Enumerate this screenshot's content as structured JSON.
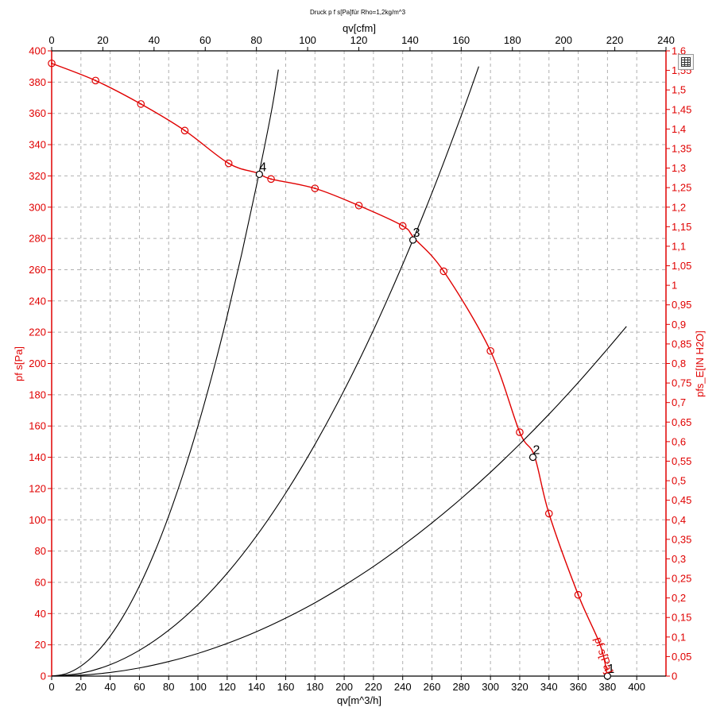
{
  "chart_data": {
    "type": "line",
    "title": "Druck p f s[Pa]für Rho=1,2kg/m^3",
    "xlabel": "qv[m^3/h]",
    "x2label": "qv[cfm]",
    "ylabel": "pf s[Pa]",
    "y2label": "pfs_E[IN H2O]",
    "xlim": [
      0,
      420
    ],
    "ylim": [
      0,
      400
    ],
    "x2lim": [
      0,
      240
    ],
    "y2lim": [
      0,
      1.6
    ],
    "grid": true,
    "x_ticks": [
      0,
      20,
      40,
      60,
      80,
      100,
      120,
      140,
      160,
      180,
      200,
      220,
      240,
      260,
      280,
      300,
      320,
      340,
      360,
      380,
      400
    ],
    "x_tick_labels": [
      "0",
      "20",
      "40",
      "60",
      "80",
      "100",
      "120",
      "140",
      "160",
      "180",
      "200",
      "220",
      "240",
      "260",
      "280",
      "300",
      "320",
      "340",
      "360",
      "380",
      "400"
    ],
    "y_ticks": [
      0,
      20,
      40,
      60,
      80,
      100,
      120,
      140,
      160,
      180,
      200,
      220,
      240,
      260,
      280,
      300,
      320,
      340,
      360,
      380,
      400
    ],
    "y_tick_labels": [
      "0",
      "20",
      "40",
      "60",
      "80",
      "100",
      "120",
      "140",
      "160",
      "180",
      "200",
      "220",
      "240",
      "260",
      "280",
      "300",
      "320",
      "340",
      "360",
      "380",
      "400"
    ],
    "x2_ticks": [
      0,
      20,
      40,
      60,
      80,
      100,
      120,
      140,
      160,
      180,
      200,
      220,
      240
    ],
    "x2_tick_labels": [
      "0",
      "20",
      "40",
      "60",
      "80",
      "100",
      "120",
      "140",
      "160",
      "180",
      "200",
      "220",
      "240"
    ],
    "y2_ticks": [
      0,
      0.05,
      0.1,
      0.15,
      0.2,
      0.25,
      0.3,
      0.35,
      0.4,
      0.45,
      0.5,
      0.55,
      0.6,
      0.65,
      0.7,
      0.75,
      0.8,
      0.85,
      0.9,
      0.95,
      1.0,
      1.05,
      1.1,
      1.15,
      1.2,
      1.25,
      1.3,
      1.35,
      1.4,
      1.45,
      1.5,
      1.55,
      1.6
    ],
    "y2_tick_labels": [
      "0",
      "0,05",
      "0,1",
      "0,15",
      "0,2",
      "0,25",
      "0,3",
      "0,35",
      "0,4",
      "0,45",
      "0,5",
      "0,55",
      "0,6",
      "0,65",
      "0,7",
      "0,75",
      "0,8",
      "0,85",
      "0,9",
      "0,95",
      "1",
      "1,05",
      "1,1",
      "1,15",
      "1,2",
      "1,25",
      "1,3",
      "1,35",
      "1,4",
      "1,45",
      "1,5",
      "1,55",
      "1,6"
    ],
    "series": [
      {
        "name": "pf s[Pa]",
        "color": "#e00000",
        "x": [
          0,
          30,
          61,
          91,
          121,
          140,
          150,
          180,
          210,
          240,
          248,
          268,
          300,
          320,
          330,
          340,
          360,
          375,
          380
        ],
        "y": [
          392,
          381,
          366,
          349,
          328,
          322,
          318,
          312,
          301,
          288,
          280,
          259,
          208,
          156,
          141,
          104,
          52,
          20,
          0
        ],
        "markers_x": [
          0,
          30,
          61,
          91,
          121,
          150,
          180,
          210,
          240,
          268,
          300,
          320,
          340,
          360
        ],
        "markers_y": [
          392,
          381,
          366,
          349,
          328,
          318,
          312,
          301,
          288,
          259,
          208,
          156,
          104,
          52
        ]
      },
      {
        "name": "",
        "color": "#000000",
        "x": [
          0,
          20,
          40,
          60,
          80,
          100,
          120,
          140,
          160,
          180,
          200,
          220,
          240,
          260,
          280,
          300,
          320,
          340,
          360,
          380,
          393
        ],
        "y": [
          0,
          0.6,
          2.3,
          5.2,
          9.3,
          14.5,
          20.9,
          28.4,
          37.1,
          46.9,
          58,
          70.1,
          83.5,
          98,
          113.6,
          130.4,
          148.4,
          167.5,
          187.8,
          209.3,
          223.7
        ]
      },
      {
        "name": "",
        "color": "#000000",
        "x": [
          0,
          20,
          40,
          60,
          80,
          100,
          120,
          140,
          160,
          180,
          200,
          220,
          240,
          260,
          280,
          292
        ],
        "y": [
          0,
          1.8,
          7.3,
          16.5,
          29.3,
          45.7,
          65.8,
          89.6,
          117.1,
          148.2,
          182.9,
          221.3,
          263.4,
          309.1,
          358.5,
          390
        ]
      },
      {
        "name": "",
        "color": "#000000",
        "x": [
          0,
          10,
          20,
          30,
          40,
          50,
          60,
          70,
          80,
          90,
          100,
          110,
          120,
          130,
          140,
          150,
          155
        ],
        "y": [
          0,
          1.6,
          6.4,
          14.4,
          25.6,
          40,
          57.6,
          78.4,
          102.4,
          129.6,
          160,
          193.6,
          230.4,
          270.4,
          313.6,
          360,
          388
        ]
      }
    ],
    "operating_points": [
      {
        "label": "1",
        "x": 380,
        "y": 0
      },
      {
        "label": "2",
        "x": 329,
        "y": 140
      },
      {
        "label": "3",
        "x": 247,
        "y": 279
      },
      {
        "label": "4",
        "x": 142,
        "y": 321
      }
    ],
    "curve_label": "pf s[Pa]"
  },
  "toolbar": {
    "table_button_icon": "table-icon"
  },
  "colors": {
    "red": "#e00000",
    "black": "#000000",
    "grid": "#b0b0b0"
  }
}
